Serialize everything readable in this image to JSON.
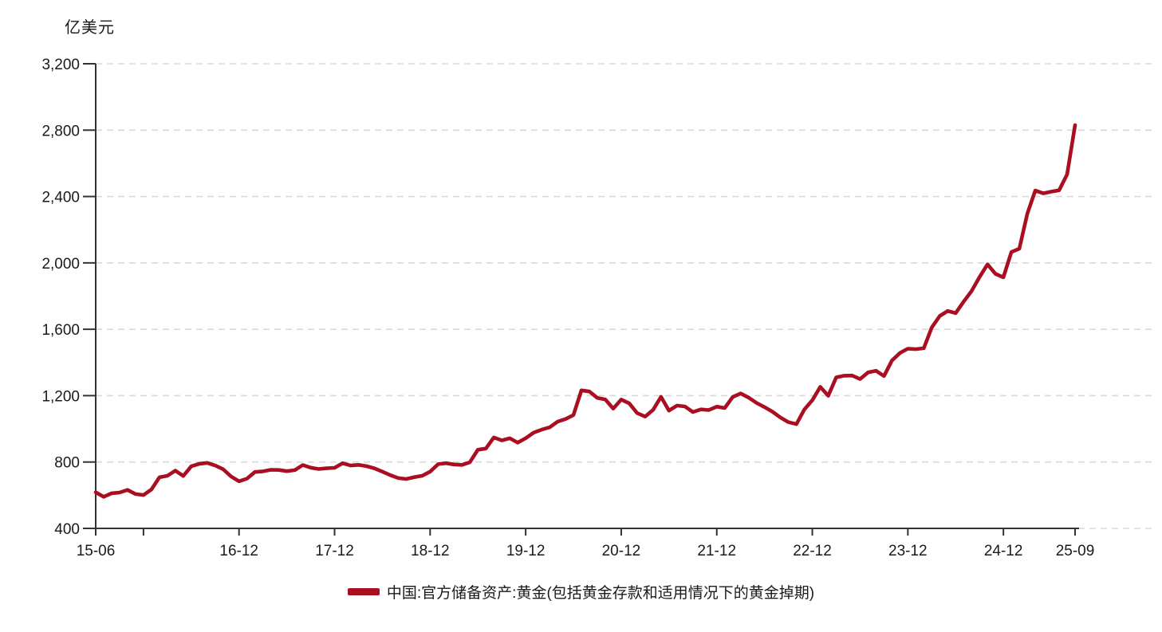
{
  "page": {
    "background": "#ffffff",
    "text_color": "#1a1a1a"
  },
  "chart_data": {
    "type": "line",
    "title": "",
    "unit_label": "亿美元",
    "xlabel": "",
    "ylabel": "亿美元",
    "ylim": [
      400,
      3200
    ],
    "grid": "horizontal-dashed",
    "grid_color": "#d9d9d9",
    "axis_color": "#333333",
    "legend_position": "bottom-center",
    "frequency": "monthly",
    "x_start": "15-06",
    "x_end": "25-09",
    "x_ticks": [
      {
        "label": "15-06",
        "month": "15-06"
      },
      {
        "label": "",
        "month": "15-12"
      },
      {
        "label": "16-12",
        "month": "16-12"
      },
      {
        "label": "17-12",
        "month": "17-12"
      },
      {
        "label": "18-12",
        "month": "18-12"
      },
      {
        "label": "19-12",
        "month": "19-12"
      },
      {
        "label": "20-12",
        "month": "20-12"
      },
      {
        "label": "21-12",
        "month": "21-12"
      },
      {
        "label": "22-12",
        "month": "22-12"
      },
      {
        "label": "23-12",
        "month": "23-12"
      },
      {
        "label": "24-12",
        "month": "24-12"
      },
      {
        "label": "25-09",
        "month": "25-09"
      }
    ],
    "y_ticks": {
      "values": [
        400,
        800,
        1200,
        1600,
        2000,
        2400,
        2800,
        3200
      ],
      "labels": [
        "400",
        "800",
        "1,200",
        "1,600",
        "2,000",
        "2,400",
        "2,800",
        "3,200"
      ]
    },
    "legend": [
      {
        "label": "中国:官方储备资产:黄金(包括黄金存款和适用情况下的黄金掉期)",
        "color": "#a90e21"
      }
    ],
    "series": [
      {
        "name": "中国:官方储备资产:黄金(包括黄金存款和适用情况下的黄金掉期)",
        "color": "#a90e21",
        "start_month": "15-06",
        "values": [
          618,
          590,
          612,
          616,
          632,
          607,
          601,
          635,
          708,
          717,
          748,
          716,
          774,
          789,
          795,
          779,
          757,
          713,
          684,
          700,
          740,
          744,
          753,
          752,
          745,
          751,
          782,
          766,
          758,
          762,
          765,
          793,
          779,
          783,
          775,
          762,
          742,
          721,
          703,
          698,
          709,
          717,
          742,
          787,
          793,
          785,
          783,
          799,
          874,
          881,
          948,
          930,
          943,
          917,
          943,
          977,
          995,
          1009,
          1043,
          1059,
          1083,
          1232,
          1225,
          1186,
          1177,
          1122,
          1176,
          1154,
          1095,
          1074,
          1114,
          1193,
          1110,
          1140,
          1135,
          1101,
          1117,
          1113,
          1134,
          1125,
          1192,
          1213,
          1188,
          1156,
          1131,
          1103,
          1068,
          1040,
          1028,
          1117,
          1172,
          1253,
          1199,
          1310,
          1320,
          1321,
          1300,
          1340,
          1350,
          1318,
          1412,
          1457,
          1483,
          1480,
          1486,
          1611,
          1680,
          1710,
          1697,
          1766,
          1830,
          1915,
          1991,
          1934,
          1913,
          2065,
          2086,
          2296,
          2436,
          2419,
          2429,
          2438,
          2533,
          2830
        ]
      }
    ]
  }
}
